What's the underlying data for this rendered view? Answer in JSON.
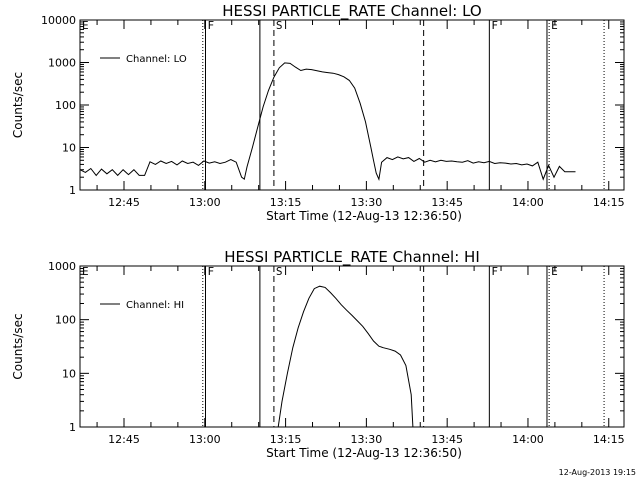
{
  "chart_data": [
    {
      "type": "line",
      "title": "HESSI PARTICLE_RATE Channel: LO",
      "xlabel": "Start Time (12-Aug-13 12:36:50)",
      "ylabel": "Counts/sec",
      "yscale": "log",
      "ylim": [
        1,
        10000
      ],
      "yticks": [
        "1",
        "10",
        "100",
        "1000",
        "10000"
      ],
      "x_unit": "minutes after 12:36:50",
      "xlim": [
        0,
        101
      ],
      "xticks": [
        {
          "label": "12:45",
          "t": 8.17
        },
        {
          "label": "13:00",
          "t": 23.17
        },
        {
          "label": "13:15",
          "t": 38.17
        },
        {
          "label": "13:30",
          "t": 53.17
        },
        {
          "label": "13:45",
          "t": 68.17
        },
        {
          "label": "14:00",
          "t": 83.17
        },
        {
          "label": "14:15",
          "t": 98.17
        }
      ],
      "grid": false,
      "legend_position": "top-left",
      "series": [
        {
          "name": "Channel: LO",
          "x": [
            0,
            1,
            2,
            3,
            4,
            5,
            6,
            7,
            8,
            9,
            10,
            11,
            12,
            13,
            14,
            15,
            16,
            17,
            18,
            19,
            20,
            21,
            22,
            23,
            24,
            25,
            26,
            27,
            28,
            29,
            30,
            30.5,
            31,
            32,
            33,
            34,
            35,
            36,
            37,
            38,
            39,
            40,
            41,
            42,
            43,
            44,
            45,
            46,
            47,
            48,
            49,
            50,
            51,
            52,
            53,
            54,
            54.5,
            55,
            55.5,
            56,
            57,
            58,
            59,
            60,
            61,
            62,
            63,
            64,
            65,
            66,
            67,
            68,
            69,
            70,
            71,
            72,
            73,
            74,
            75,
            76,
            77,
            78,
            79,
            80,
            81,
            82,
            83,
            84,
            85,
            86,
            87,
            88,
            89,
            90,
            91,
            92
          ],
          "values": [
            3,
            2.6,
            3.2,
            2.2,
            3.1,
            2.4,
            3.0,
            2.2,
            3.0,
            2.3,
            3.0,
            2.2,
            2.2,
            4.6,
            4.0,
            4.8,
            4.2,
            4.7,
            3.9,
            4.8,
            4.2,
            4.5,
            3.8,
            4.8,
            4.3,
            4.6,
            4.2,
            4.5,
            5.2,
            4.5,
            2.0,
            1.8,
            3.5,
            10,
            30,
            90,
            220,
            450,
            750,
            980,
            950,
            780,
            650,
            700,
            680,
            640,
            600,
            580,
            560,
            520,
            460,
            380,
            250,
            110,
            40,
            10,
            5,
            2.5,
            1.8,
            4.5,
            5.8,
            5.2,
            6.0,
            5.4,
            5.8,
            4.7,
            5.5,
            4.5,
            5.0,
            4.6,
            5.0,
            4.7,
            4.8,
            4.6,
            4.5,
            4.9,
            4.3,
            4.6,
            4.4,
            4.7,
            4.2,
            4.4,
            4.3,
            4.1,
            4.2,
            3.9,
            4.1,
            3.7,
            4.5,
            1.8,
            3.8,
            2.0,
            3.6,
            2.7,
            2.7,
            2.7
          ]
        }
      ],
      "markers": [
        {
          "t": 22.8,
          "style": "dotted",
          "label": ""
        },
        {
          "t": 23.3,
          "style": "solid",
          "label": "F"
        },
        {
          "t": 33.4,
          "style": "solid",
          "label": ""
        },
        {
          "t": 36.0,
          "style": "dashed",
          "label": "S"
        },
        {
          "t": 63.8,
          "style": "dashed",
          "label": ""
        },
        {
          "t": 76.0,
          "style": "solid",
          "label": "F"
        },
        {
          "t": 86.7,
          "style": "solid",
          "label": ""
        },
        {
          "t": 87.1,
          "style": "dotted",
          "label": "E"
        },
        {
          "t": 97.3,
          "style": "dotted",
          "label": ""
        }
      ],
      "left_edge_label": "E"
    },
    {
      "type": "line",
      "title": "HESSI PARTICLE_RATE Channel: HI",
      "xlabel": "Start Time (12-Aug-13 12:36:50)",
      "ylabel": "Counts/sec",
      "yscale": "log",
      "ylim": [
        1,
        1000
      ],
      "yticks": [
        "1",
        "10",
        "100",
        "1000"
      ],
      "x_unit": "minutes after 12:36:50",
      "xlim": [
        0,
        101
      ],
      "xticks": [
        {
          "label": "12:45",
          "t": 8.17
        },
        {
          "label": "13:00",
          "t": 23.17
        },
        {
          "label": "13:15",
          "t": 38.17
        },
        {
          "label": "13:30",
          "t": 53.17
        },
        {
          "label": "13:45",
          "t": 68.17
        },
        {
          "label": "14:00",
          "t": 83.17
        },
        {
          "label": "14:15",
          "t": 98.17
        }
      ],
      "grid": false,
      "legend_position": "top-left",
      "series": [
        {
          "name": "Channel: HI",
          "x": [
            36.8,
            37.5,
            38.5,
            39.5,
            40.5,
            41.5,
            42.5,
            43.5,
            44.5,
            45.5,
            46.5,
            47.5,
            48.5,
            49.5,
            50.5,
            51.5,
            52.5,
            53.5,
            54.5,
            55.5,
            56.3,
            57.5,
            58.5,
            59.5,
            60.5,
            61.5,
            61.8
          ],
          "values": [
            1,
            3,
            10,
            30,
            70,
            140,
            250,
            380,
            420,
            400,
            320,
            250,
            190,
            150,
            120,
            95,
            75,
            55,
            40,
            32,
            30,
            28,
            26,
            22,
            14,
            4,
            1
          ]
        }
      ],
      "markers": [
        {
          "t": 22.8,
          "style": "dotted",
          "label": ""
        },
        {
          "t": 23.3,
          "style": "solid",
          "label": "F"
        },
        {
          "t": 33.4,
          "style": "solid",
          "label": ""
        },
        {
          "t": 36.0,
          "style": "dashed",
          "label": "S"
        },
        {
          "t": 63.8,
          "style": "dashed",
          "label": ""
        },
        {
          "t": 76.0,
          "style": "solid",
          "label": "F"
        },
        {
          "t": 86.7,
          "style": "solid",
          "label": ""
        },
        {
          "t": 87.1,
          "style": "dotted",
          "label": "E"
        },
        {
          "t": 97.3,
          "style": "dotted",
          "label": ""
        }
      ],
      "left_edge_label": "E"
    }
  ],
  "footer": {
    "timestamp": "12-Aug-2013 19:15"
  },
  "colors": {
    "background": "#ffffff",
    "foreground": "#000000"
  }
}
